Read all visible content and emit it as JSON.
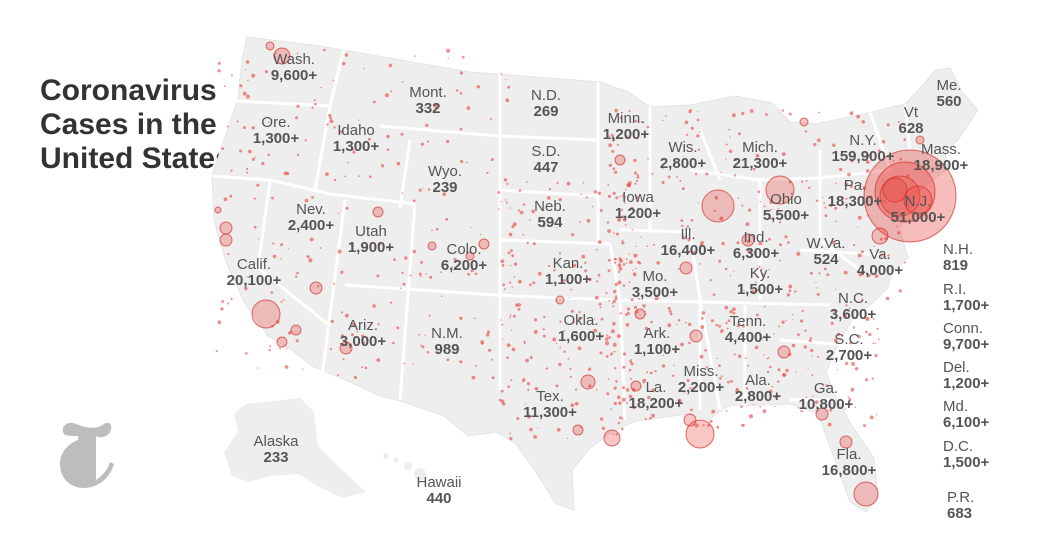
{
  "title": "Coronavirus Cases in the United States",
  "colors": {
    "land": "#eeeeee",
    "border": "#ffffff",
    "bubble_fill": "#e8413c",
    "bubble_stroke": "#d3302c",
    "text": "#555555",
    "title": "#333333",
    "logo": "#bdbdbd"
  },
  "icons": {
    "logo": "nyt-t-logo"
  },
  "states": [
    {
      "name": "Wash.",
      "cases": "9,600+"
    },
    {
      "name": "Ore.",
      "cases": "1,300+"
    },
    {
      "name": "Idaho",
      "cases": "1,300+"
    },
    {
      "name": "Mont.",
      "cases": "332"
    },
    {
      "name": "N.D.",
      "cases": "269"
    },
    {
      "name": "Minn.",
      "cases": "1,200+"
    },
    {
      "name": "Wis.",
      "cases": "2,800+"
    },
    {
      "name": "Mich.",
      "cases": "21,300+"
    },
    {
      "name": "N.Y.",
      "cases": "159,900+"
    },
    {
      "name": "Vt",
      "cases": "628"
    },
    {
      "name": "Me.",
      "cases": "560"
    },
    {
      "name": "Mass.",
      "cases": "18,900+"
    },
    {
      "name": "S.D.",
      "cases": "447"
    },
    {
      "name": "Wyo.",
      "cases": "239"
    },
    {
      "name": "Nev.",
      "cases": "2,400+"
    },
    {
      "name": "Utah",
      "cases": "1,900+"
    },
    {
      "name": "Calif.",
      "cases": "20,100+"
    },
    {
      "name": "Colo.",
      "cases": "6,200+"
    },
    {
      "name": "Neb.",
      "cases": "594"
    },
    {
      "name": "Iowa",
      "cases": "1,200+"
    },
    {
      "name": "Ill.",
      "cases": "16,400+"
    },
    {
      "name": "Ind.",
      "cases": "6,300+"
    },
    {
      "name": "Ohio",
      "cases": "5,500+"
    },
    {
      "name": "Pa.",
      "cases": "18,300+"
    },
    {
      "name": "N.J.",
      "cases": "51,000+"
    },
    {
      "name": "W.Va.",
      "cases": "524"
    },
    {
      "name": "Va.",
      "cases": "4,000+"
    },
    {
      "name": "Kan.",
      "cases": "1,100+"
    },
    {
      "name": "Mo.",
      "cases": "3,500+"
    },
    {
      "name": "Ky.",
      "cases": "1,500+"
    },
    {
      "name": "Ariz.",
      "cases": "3,000+"
    },
    {
      "name": "N.M.",
      "cases": "989"
    },
    {
      "name": "Okla.",
      "cases": "1,600+"
    },
    {
      "name": "Tenn.",
      "cases": "4,400+"
    },
    {
      "name": "N.C.",
      "cases": "3,600+"
    },
    {
      "name": "Ark.",
      "cases": "1,100+"
    },
    {
      "name": "S.C.",
      "cases": "2,700+"
    },
    {
      "name": "Miss.",
      "cases": "2,200+"
    },
    {
      "name": "Ala.",
      "cases": "2,800+"
    },
    {
      "name": "Ga.",
      "cases": "10,800+"
    },
    {
      "name": "Tex.",
      "cases": "11,300+"
    },
    {
      "name": "La.",
      "cases": "18,200+"
    },
    {
      "name": "Fla.",
      "cases": "16,800+"
    },
    {
      "name": "Alaska",
      "cases": "233"
    },
    {
      "name": "Hawaii",
      "cases": "440"
    }
  ],
  "side_list": [
    {
      "name": "N.H.",
      "cases": "819"
    },
    {
      "name": "R.I.",
      "cases": "1,700+"
    },
    {
      "name": "Conn.",
      "cases": "9,700+"
    },
    {
      "name": "Del.",
      "cases": "1,200+"
    },
    {
      "name": "Md.",
      "cases": "6,100+"
    },
    {
      "name": "D.C.",
      "cases": "1,500+"
    },
    {
      "name": "P.R.",
      "cases": "683"
    }
  ]
}
